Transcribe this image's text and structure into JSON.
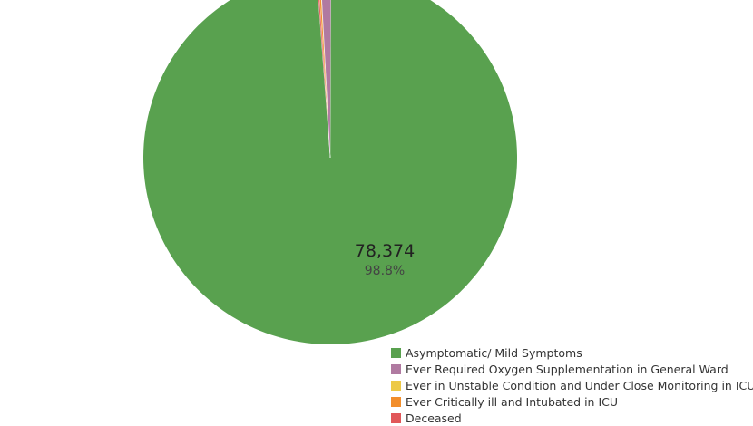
{
  "chart_data": {
    "type": "pie",
    "labels": [
      "Asymptomatic/ Mild Symptoms",
      "Ever Required Oxygen Supplementation in General Ward",
      "Ever in Unstable Condition and Under Close Monitoring in ICU",
      "Ever Critically ill and Intubated in ICU",
      "Deceased"
    ],
    "values": [
      78374,
      720,
      40,
      130,
      110
    ],
    "colors": [
      "#59a14f",
      "#b07aa1",
      "#edc948",
      "#f28e2b",
      "#e15759"
    ],
    "labeled_slice": {
      "value_label": "78,374",
      "percent_label": "98.8%"
    },
    "legend_placement": "bottom-right"
  }
}
